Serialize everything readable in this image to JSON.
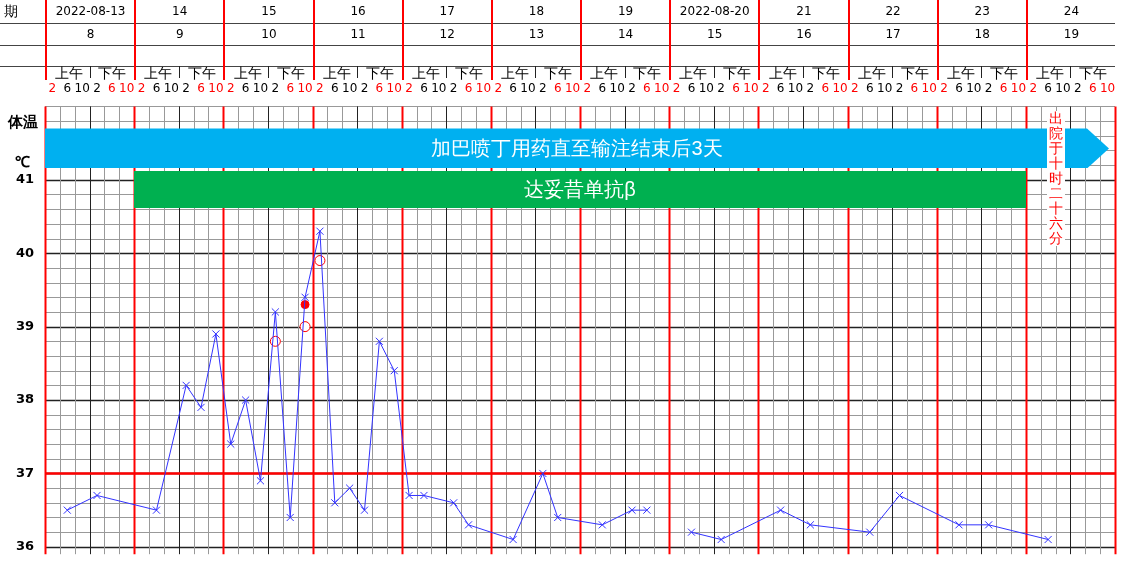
{
  "chart_data": {
    "type": "line",
    "ylabel": "体温\n℃",
    "categories": [
      "2",
      "6",
      "10",
      "2",
      "6",
      "10",
      "2",
      "6",
      "10",
      "2",
      "6",
      "10",
      "2",
      "6",
      "10",
      "2",
      "6",
      "10",
      "2",
      "6",
      "10",
      "2",
      "6",
      "10",
      "2",
      "6",
      "10",
      "2",
      "6",
      "10",
      "2",
      "6",
      "10",
      "2",
      "6",
      "10",
      "2",
      "6",
      "10",
      "2",
      "6",
      "10",
      "2",
      "6",
      "10",
      "2",
      "6",
      "10",
      "2",
      "6",
      "10",
      "2",
      "6",
      "10",
      "2",
      "6",
      "10",
      "2",
      "6",
      "10",
      "2",
      "6",
      "10",
      "2",
      "6",
      "10",
      "2",
      "6",
      "10",
      "2",
      "6",
      "10"
    ],
    "series": [
      {
        "type": "line",
        "color": "#3333ff",
        "marker": "cross",
        "values": [
          null,
          36.5,
          null,
          36.7,
          null,
          null,
          null,
          36.5,
          null,
          38.2,
          37.9,
          38.9,
          37.4,
          38.0,
          36.9,
          39.2,
          36.4,
          39.4,
          40.3,
          36.6,
          36.8,
          36.5,
          38.8,
          38.4,
          36.7,
          36.7,
          null,
          36.6,
          36.3,
          null,
          null,
          36.1,
          null,
          37.0,
          36.4,
          null,
          null,
          36.3,
          null,
          36.5,
          36.5,
          null,
          null,
          null,
          null,
          null,
          null,
          null,
          null,
          null,
          null,
          null,
          null,
          null,
          null,
          null,
          null,
          null,
          null,
          null,
          null,
          null,
          null,
          null,
          null,
          null,
          null,
          null,
          null,
          null,
          null,
          null
        ]
      },
      {
        "type": "line",
        "color": "#3333ff",
        "marker": "cross",
        "values": [
          null,
          null,
          null,
          null,
          null,
          null,
          null,
          null,
          null,
          null,
          null,
          null,
          null,
          null,
          null,
          null,
          null,
          null,
          null,
          null,
          null,
          null,
          null,
          null,
          null,
          null,
          null,
          null,
          null,
          null,
          null,
          null,
          null,
          null,
          null,
          null,
          null,
          null,
          null,
          null,
          null,
          null,
          null,
          36.2,
          null,
          36.1,
          null,
          null,
          null,
          36.5,
          null,
          36.3,
          null,
          null,
          null,
          36.2,
          null,
          36.7,
          null,
          null,
          null,
          36.3,
          null,
          36.3,
          null,
          null,
          null,
          36.1,
          null,
          null,
          null,
          null
        ]
      },
      {
        "type": "scatter",
        "color": "#ff0000",
        "marker": "circle",
        "values": [
          null,
          null,
          null,
          null,
          null,
          null,
          null,
          null,
          null,
          null,
          null,
          null,
          null,
          null,
          null,
          38.8,
          null,
          39.0,
          39.9,
          null,
          null,
          null,
          null,
          null,
          null,
          null,
          null,
          null,
          null,
          null,
          null,
          null,
          null,
          null,
          null,
          null,
          null,
          null,
          null,
          null,
          null,
          null,
          null,
          null,
          null,
          null,
          null,
          null,
          null,
          null,
          null,
          null,
          null,
          null,
          null,
          null,
          null,
          null,
          null,
          null,
          null,
          null,
          null,
          null,
          null,
          null,
          null,
          null,
          null,
          null,
          null,
          null
        ]
      },
      {
        "type": "scatter",
        "color": "#ff0000",
        "marker": "dot",
        "values": [
          null,
          null,
          null,
          null,
          null,
          null,
          null,
          null,
          null,
          null,
          null,
          null,
          null,
          null,
          null,
          null,
          null,
          39.3,
          null,
          null,
          null,
          null,
          null,
          null,
          null,
          null,
          null,
          null,
          null,
          null,
          null,
          null,
          null,
          null,
          null,
          null,
          null,
          null,
          null,
          null,
          null,
          null,
          null,
          null,
          null,
          null,
          null,
          null,
          null,
          null,
          null,
          null,
          null,
          null,
          null,
          null,
          null,
          null,
          null,
          null,
          null,
          null,
          null,
          null,
          null,
          null,
          null,
          null,
          null,
          null,
          null,
          null
        ]
      }
    ],
    "ylim": [
      35.9,
      42
    ],
    "yticks": [
      36,
      37,
      38,
      39,
      40,
      41
    ],
    "grid": true,
    "legend": false,
    "ref_lines": [
      {
        "axis": "y",
        "value": 37,
        "color": "#ff0000"
      }
    ],
    "annotations": [
      "加巴喷丁用药直至输注结束后3天",
      "达妥昔单抗β",
      "出院于十时二十六分",
      "期",
      "2022-08-13",
      "14",
      "15",
      "16",
      "17",
      "18",
      "19",
      "2022-08-20",
      "21",
      "22",
      "23",
      "24",
      "8",
      "9",
      "10",
      "11",
      "12",
      "13",
      "14",
      "15",
      "16",
      "17",
      "18",
      "19",
      "上午",
      "下午",
      "上午",
      "下午",
      "上午",
      "下午",
      "上午",
      "下午",
      "上午",
      "下午",
      "上午",
      "下午",
      "上午",
      "下午",
      "上午",
      "下午",
      "上午",
      "下午",
      "上午",
      "下午",
      "上午",
      "下午",
      "上午",
      "下午"
    ]
  }
}
